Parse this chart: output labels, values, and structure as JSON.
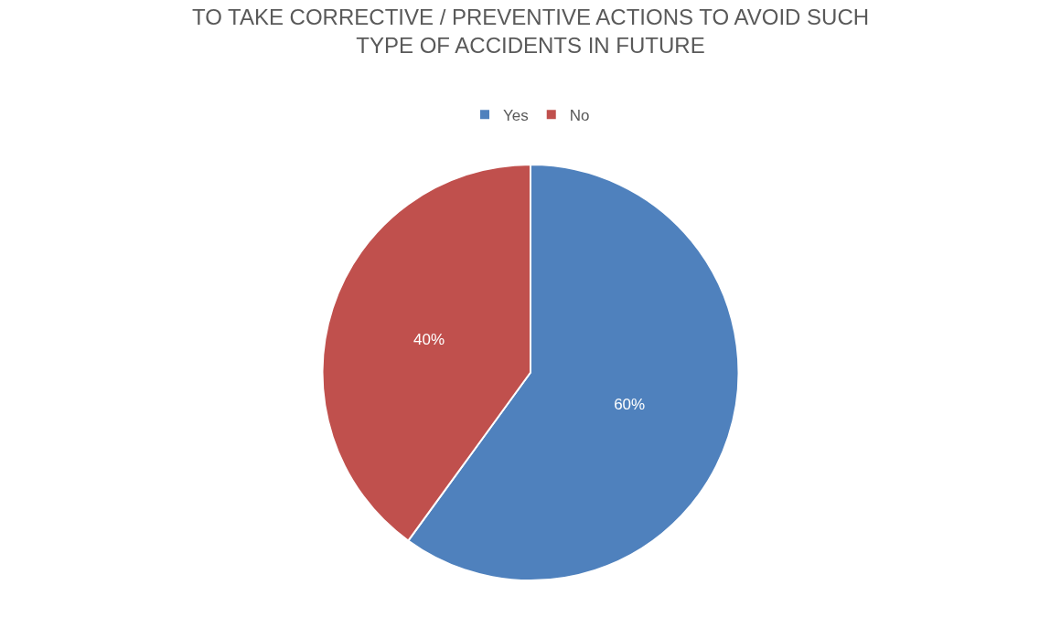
{
  "chart_data": {
    "type": "pie",
    "title": "TO TAKE CORRECTIVE / PREVENTIVE ACTIONS TO AVOID SUCH\nTYPE OF ACCIDENTS IN FUTURE",
    "categories": [
      "Yes",
      "No"
    ],
    "values": [
      60,
      40
    ],
    "colors": [
      "#4f81bd",
      "#c0504d"
    ],
    "value_labels": [
      "60%",
      "40%"
    ],
    "legend": "top"
  }
}
